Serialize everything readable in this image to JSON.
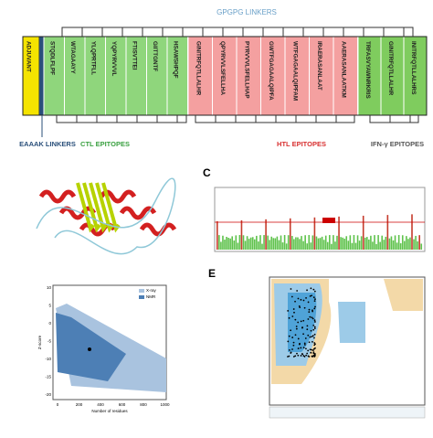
{
  "construct": {
    "linker_top": "GPGPG LINKERS",
    "adjuvant": "ADJUVANT",
    "ctl_epitopes": [
      "STQDLFLPF",
      "WTAGAAYY",
      "YLQPRTFLL",
      "YQPYRVVVL",
      "FTISVTTEI",
      "GIITTGNTF",
      "HSAWSHPQF"
    ],
    "htl_epitopes": [
      "GINITRFQTLLALHR",
      "QPYRVVLSFELLHA",
      "PYRVVVLSFELLHAP",
      "GWTFGAGAALQIPFA",
      "WTFGAGAALQIPFAM",
      "IRAERASANLAAT",
      "AAERASANLAATKM"
    ],
    "ifn_epitopes": [
      "TRFASVYAWNRKRIS",
      "GINITRFQTLLALHR",
      "INITRFQTLLALHRS"
    ],
    "labels": {
      "eaaak": "EAAAK LINKERS",
      "ctl": "CTL EPITOPES",
      "htl": "HTL EPITOPES",
      "ifn": "IFN-γ EPITOPES"
    }
  },
  "panels": {
    "c": "C",
    "e": "E"
  },
  "zscore_plot": {
    "legend": [
      "X-ray",
      "NMR"
    ],
    "x_label": "Number of residues",
    "y_label": "Z-score",
    "xticks": [
      "0",
      "200",
      "400",
      "600",
      "800",
      "1000"
    ],
    "yticks": [
      "10",
      "5",
      "0",
      "-5",
      "-10",
      "-15",
      "-20"
    ]
  }
}
